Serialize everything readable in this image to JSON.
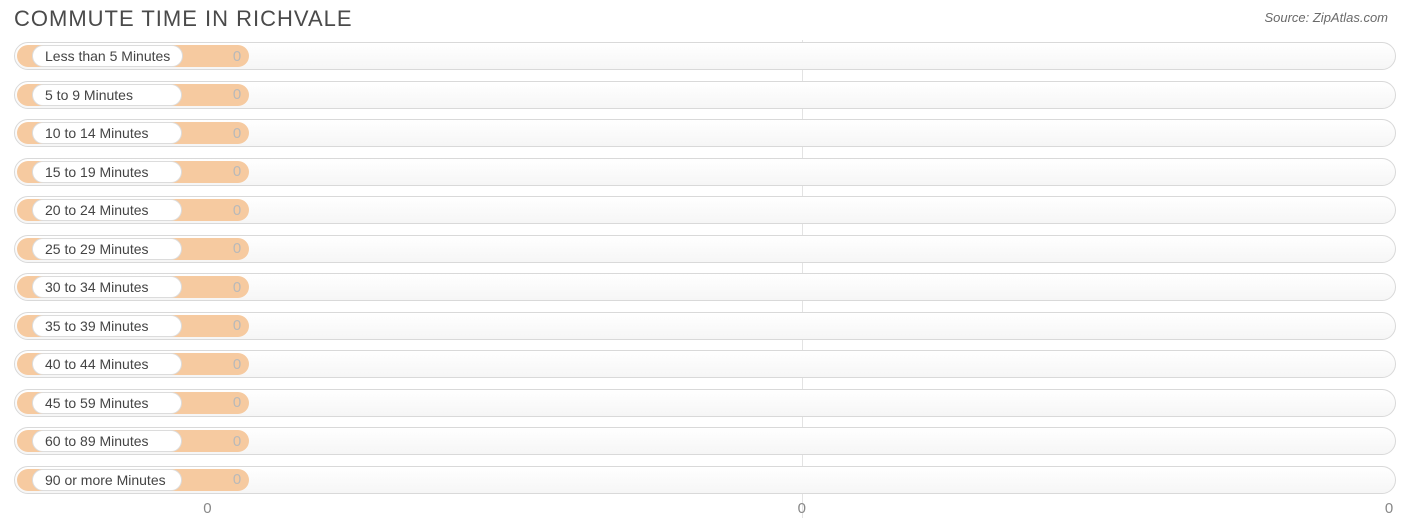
{
  "title": "COMMUTE TIME IN RICHVALE",
  "source": "Source: ZipAtlas.com",
  "chart": {
    "type": "bar",
    "orientation": "horizontal",
    "bar_color": "#f6caa0",
    "track_border_color": "#d9d9d9",
    "track_bg_top": "#ffffff",
    "track_bg_bottom": "#f6f6f6",
    "label_pill_bg": "#ffffff",
    "label_pill_border": "#dcdcdc",
    "value_color": "#b9b9b9",
    "label_color": "#444444",
    "grid_color": "#e3e3e3",
    "bar_fill_percent": 16.8,
    "categories": [
      {
        "label": "Less than 5 Minutes",
        "value": 0
      },
      {
        "label": "5 to 9 Minutes",
        "value": 0
      },
      {
        "label": "10 to 14 Minutes",
        "value": 0
      },
      {
        "label": "15 to 19 Minutes",
        "value": 0
      },
      {
        "label": "20 to 24 Minutes",
        "value": 0
      },
      {
        "label": "25 to 29 Minutes",
        "value": 0
      },
      {
        "label": "30 to 34 Minutes",
        "value": 0
      },
      {
        "label": "35 to 39 Minutes",
        "value": 0
      },
      {
        "label": "40 to 44 Minutes",
        "value": 0
      },
      {
        "label": "45 to 59 Minutes",
        "value": 0
      },
      {
        "label": "60 to 89 Minutes",
        "value": 0
      },
      {
        "label": "90 or more Minutes",
        "value": 0
      }
    ],
    "axis_ticks": [
      {
        "label": "0",
        "position_percent": 14.0
      },
      {
        "label": "0",
        "position_percent": 57.0
      },
      {
        "label": "0",
        "position_percent": 99.5
      }
    ]
  }
}
